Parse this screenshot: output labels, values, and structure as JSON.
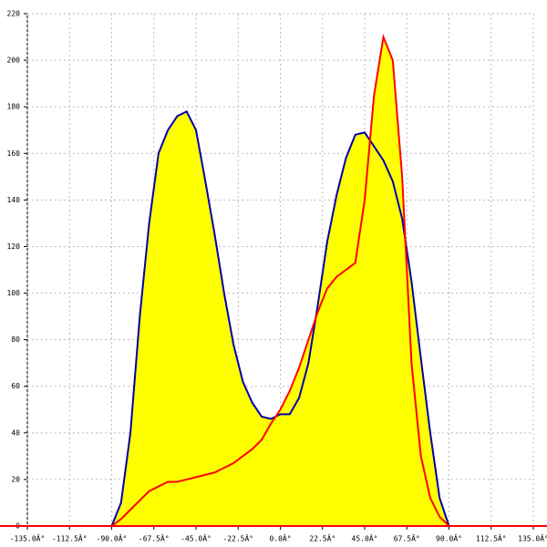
{
  "chart_data": {
    "type": "area",
    "fill": "#ffff00",
    "grid": true,
    "x": [
      -90,
      -85,
      -80,
      -75,
      -70,
      -65,
      -60,
      -55,
      -50,
      -45,
      -40,
      -35,
      -30,
      -25,
      -20,
      -15,
      -10,
      -5,
      0,
      5,
      10,
      15,
      20,
      25,
      30,
      35,
      40,
      45,
      50,
      55,
      60,
      65,
      70,
      75,
      80,
      85,
      90
    ],
    "series": [
      {
        "color": "#0000aa",
        "values": [
          0,
          10,
          40,
          90,
          130,
          160,
          170,
          176,
          178,
          170,
          148,
          125,
          100,
          78,
          62,
          53,
          47,
          46,
          48,
          48,
          55,
          70,
          95,
          122,
          142,
          158,
          168,
          169,
          163,
          157,
          148,
          132,
          105,
          72,
          40,
          12,
          0
        ]
      },
      {
        "color": "#ff0000",
        "values": [
          0,
          3,
          7,
          11,
          15,
          17,
          19,
          19,
          20,
          21,
          22,
          23,
          25,
          27,
          30,
          33,
          37,
          44,
          50,
          58,
          68,
          80,
          92,
          102,
          107,
          110,
          113,
          140,
          185,
          210,
          200,
          150,
          70,
          30,
          12,
          4,
          0
        ]
      }
    ],
    "xlim": [
      -135,
      135
    ],
    "xticks": [
      {
        "value": -135,
        "label": "-135.0Â°"
      },
      {
        "value": -112.5,
        "label": "-112.5Â°"
      },
      {
        "value": -90,
        "label": "-90.0Â°"
      },
      {
        "value": -67.5,
        "label": "-67.5Â°"
      },
      {
        "value": -45,
        "label": "-45.0Â°"
      },
      {
        "value": -22.5,
        "label": "-22.5Â°"
      },
      {
        "value": 0,
        "label": "0.0Â°"
      },
      {
        "value": 22.5,
        "label": "22.5Â°"
      },
      {
        "value": 45,
        "label": "45.0Â°"
      },
      {
        "value": 67.5,
        "label": "67.5Â°"
      },
      {
        "value": 90,
        "label": "90.0Â°"
      },
      {
        "value": 112.5,
        "label": "112.5Â°"
      },
      {
        "value": 135,
        "label": "135.0Â°"
      }
    ],
    "ylim": [
      0,
      220
    ],
    "yticks": [
      0,
      20,
      40,
      60,
      80,
      100,
      120,
      140,
      160,
      180,
      200,
      220
    ]
  }
}
